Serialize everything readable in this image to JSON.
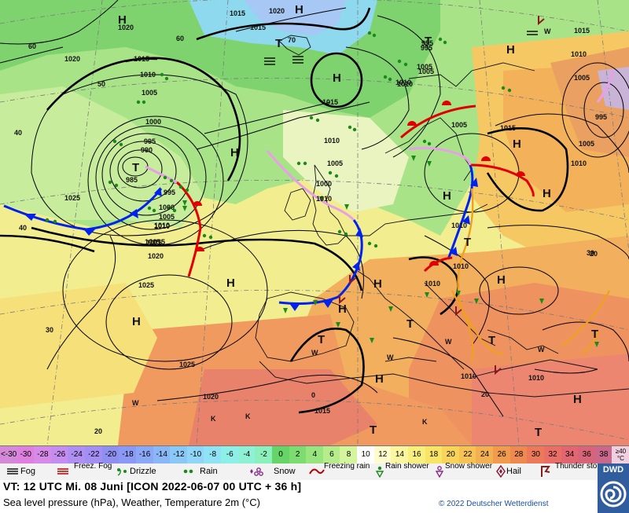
{
  "colors": {
    "cold_front": "#0022ee",
    "warm_front": "#e00000",
    "occlusion": "#e7a0e7",
    "trough": "#f0a020",
    "isobar": "#000000",
    "precip": "#1a8a1a"
  },
  "map": {
    "pressure_labels": [
      "1020",
      "1015",
      "1010",
      "1005",
      "1000",
      "995",
      "990",
      "985",
      "1025",
      "1020",
      "1015",
      "1010",
      "1005",
      "1000",
      "995",
      "1020",
      "1015",
      "1010",
      "1005",
      "995",
      "1010",
      "1015",
      "1010",
      "1005",
      "1000",
      "995",
      "1010",
      "1005",
      "1020",
      "1025",
      "1010",
      "1010",
      "1015",
      "1010",
      "1015",
      "1005",
      "1010",
      "1005",
      "995",
      "1005",
      "1010",
      "1015",
      "1020",
      "1025",
      "1010",
      "1015",
      "1010",
      "1015",
      "1010",
      "1015"
    ],
    "pressure_centers": [
      "H",
      "H",
      "H",
      "T",
      "H",
      "H",
      "H",
      "T",
      "H",
      "H",
      "H",
      "H",
      "T",
      "H",
      "T",
      "H",
      "T",
      "T",
      "H",
      "H",
      "T",
      "H",
      "T",
      "T",
      "T"
    ],
    "temp_labels": [
      "60",
      "50",
      "40",
      "30",
      "40",
      "30",
      "70",
      "60",
      "20",
      "0",
      "20",
      "20"
    ],
    "weather_letters": [
      "W",
      "W",
      "W",
      "K",
      "K",
      "W",
      "W",
      "K",
      "W"
    ]
  },
  "scale": {
    "cells": [
      {
        "label": "<-30",
        "color": "#d48ad9"
      },
      {
        "label": "-30",
        "color": "#de80de"
      },
      {
        "label": "-28",
        "color": "#d88ae8"
      },
      {
        "label": "-26",
        "color": "#c58df0"
      },
      {
        "label": "-24",
        "color": "#b08ff2"
      },
      {
        "label": "-22",
        "color": "#a38ff3"
      },
      {
        "label": "-20",
        "color": "#8f8ff0"
      },
      {
        "label": "-18",
        "color": "#8a99f3"
      },
      {
        "label": "-16",
        "color": "#8aa8f5"
      },
      {
        "label": "-14",
        "color": "#8ab8f7"
      },
      {
        "label": "-12",
        "color": "#8ac8f8"
      },
      {
        "label": "-10",
        "color": "#8fd6f8"
      },
      {
        "label": "-8",
        "color": "#90e3f4"
      },
      {
        "label": "-6",
        "color": "#8eeee8"
      },
      {
        "label": "-4",
        "color": "#8ef0d4"
      },
      {
        "label": "-2",
        "color": "#8cf0bc"
      },
      {
        "label": "0",
        "color": "#66d466"
      },
      {
        "label": "2",
        "color": "#7cdc70"
      },
      {
        "label": "4",
        "color": "#98e47e"
      },
      {
        "label": "6",
        "color": "#b6ec8c"
      },
      {
        "label": "8",
        "color": "#d4f49e"
      },
      {
        "label": "10",
        "color": "#ffffff"
      },
      {
        "label": "12",
        "color": "#fefccc"
      },
      {
        "label": "14",
        "color": "#fbf6a0"
      },
      {
        "label": "16",
        "color": "#f8ef7c"
      },
      {
        "label": "18",
        "color": "#f8e466"
      },
      {
        "label": "20",
        "color": "#f8d45a"
      },
      {
        "label": "22",
        "color": "#f6c254"
      },
      {
        "label": "24",
        "color": "#f2b050"
      },
      {
        "label": "26",
        "color": "#f09c4c"
      },
      {
        "label": "28",
        "color": "#ee8a50"
      },
      {
        "label": "30",
        "color": "#ec7a5a"
      },
      {
        "label": "32",
        "color": "#e86e66"
      },
      {
        "label": "34",
        "color": "#e26670"
      },
      {
        "label": "36",
        "color": "#d8647a"
      },
      {
        "label": "38",
        "color": "#c9688a"
      },
      {
        "label": "≥40 °C",
        "color": "#f0cfe0"
      }
    ]
  },
  "legend": {
    "fog": "Fog",
    "freezing_fog": "Freez. Fog",
    "drizzle": "Drizzle",
    "rain": "Rain",
    "snow": "Snow",
    "freezing_rain": "Freezing rain",
    "rain_shower": "Rain shower",
    "snow_shower": "Snow shower",
    "hail": "Hail",
    "thunderstorm": "Thunder storm"
  },
  "info": {
    "valid_time": "VT: 12 UTC Mi.  08 Juni [ICON 2022-06-07  00 UTC + 36 h]",
    "description": "Sea level pressure (hPa), Weather, Temperature 2m (°C)",
    "copyright": "© 2022 Deutscher Wetterdienst",
    "logo": "DWD"
  }
}
